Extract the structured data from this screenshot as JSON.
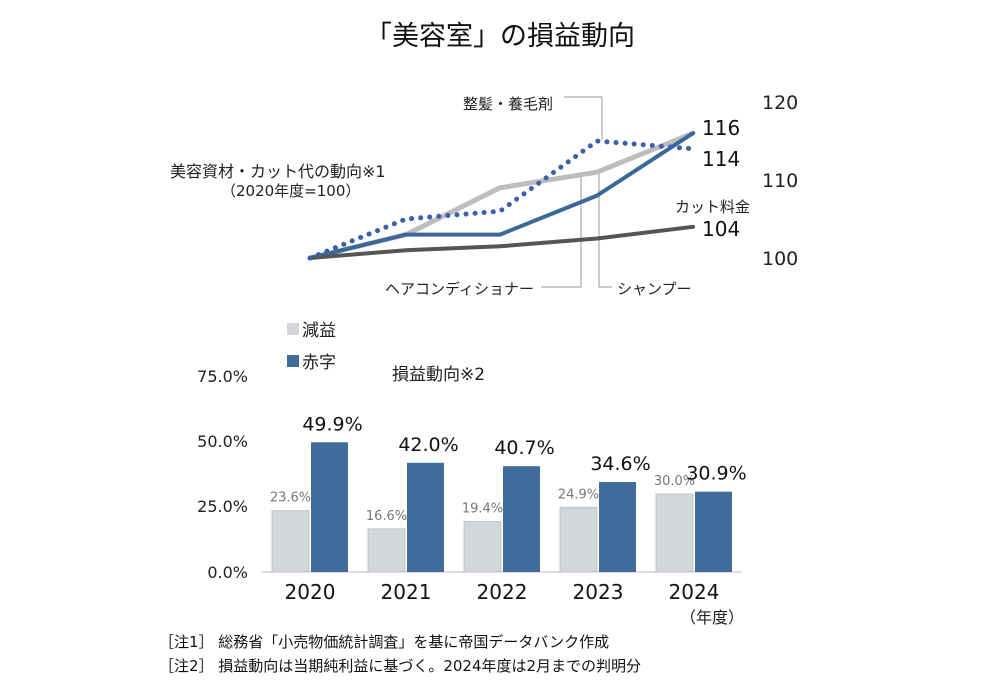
{
  "title": "「美容室」の損益動向",
  "line_chart": {
    "label_main": "美容資材・カット代の動向※1",
    "label_base": "（2020年度=100）",
    "right_axis": [
      "120",
      "110",
      "100"
    ],
    "annotations": {
      "seikei": "整髪・養毛剤",
      "cut": "カット料金",
      "conditioner": "ヘアコンディショナー",
      "shampoo": "シャンプー",
      "val_116": "116",
      "val_114": "114",
      "val_104": "104"
    }
  },
  "bar_chart": {
    "label": "損益動向※2",
    "legend": [
      "減益",
      "赤字"
    ],
    "y_ticks": [
      "75.0%",
      "50.0%",
      "25.0%",
      "0.0%"
    ],
    "year_suffix": "（年度）"
  },
  "notes": [
    "［注1］ 総務省「小売物価統計調査」を基に帝国データバンク作成",
    "［注2］ 損益動向は当期純利益に基づく。2024年度は2月までの判明分"
  ],
  "colors": {
    "decline": "#d3d7db",
    "deficit": "#3f6c9a",
    "seikei_line": "#3d5fb0",
    "shampoo_line": "#bdbdbd",
    "conditioner_line": "#3a6898",
    "cut_line": "#555555"
  },
  "chart_data": [
    {
      "type": "line",
      "right_axis_ticks": [
        100,
        110,
        120
      ],
      "y_range": [
        100,
        120
      ],
      "series": [
        {
          "name": "整髪・養毛剤",
          "style": "dotted",
          "values": [
            100,
            105,
            106,
            115,
            114
          ]
        },
        {
          "name": "シャンプー",
          "values": [
            100,
            103,
            109,
            111,
            116
          ]
        },
        {
          "name": "ヘアコンディショナー",
          "values": [
            100,
            103,
            103,
            108,
            116
          ]
        },
        {
          "name": "カット料金",
          "values": [
            100,
            101,
            101.5,
            102.5,
            104
          ]
        }
      ]
    },
    {
      "type": "bar",
      "categories": [
        "2020",
        "2021",
        "2022",
        "2023",
        "2024"
      ],
      "ylim": [
        0,
        75
      ],
      "series": [
        {
          "name": "減益",
          "values": [
            23.6,
            16.6,
            19.4,
            24.9,
            30.0
          ],
          "labels": [
            "23.6%",
            "16.6%",
            "19.4%",
            "24.9%",
            "30.0%"
          ]
        },
        {
          "name": "赤字",
          "values": [
            49.9,
            42.0,
            40.7,
            34.6,
            30.9
          ],
          "labels": [
            "49.9%",
            "42.0%",
            "40.7%",
            "34.6%",
            "30.9%"
          ]
        }
      ]
    }
  ]
}
